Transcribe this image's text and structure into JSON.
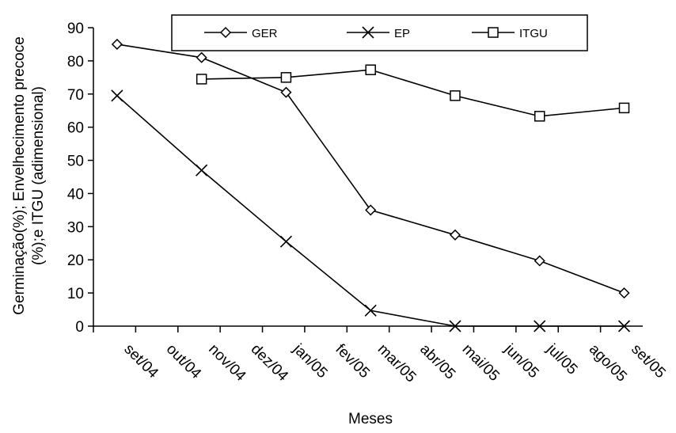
{
  "chart_data": {
    "type": "line",
    "title": "",
    "xlabel": "Meses",
    "ylabel_lines": [
      "Germinação(%); Envelhecimento precoce",
      "(%);e ITGU (adimensional)"
    ],
    "categories": [
      "set/04",
      "out/04",
      "nov/04",
      "dez/04",
      "jan/05",
      "fev/05",
      "mar/05",
      "abr/05",
      "mai/05",
      "jun/05",
      "jul/05",
      "ago/05",
      "set/05"
    ],
    "ylim": [
      0,
      90
    ],
    "yticks": [
      0,
      10,
      20,
      30,
      40,
      50,
      60,
      70,
      80,
      90
    ],
    "grid": false,
    "legend_position": "top",
    "series": [
      {
        "name": "GER",
        "marker": "diamond",
        "x": [
          0.28,
          1.28,
          2.28,
          3.28,
          4.28,
          5.28,
          6.28
        ],
        "values": [
          85,
          81,
          70.5,
          35,
          27.5,
          19.7,
          10
        ]
      },
      {
        "name": "EP",
        "marker": "x",
        "x": [
          0.28,
          1.28,
          2.28,
          3.28,
          4.28,
          5.28,
          6.28
        ],
        "values": [
          69.5,
          47,
          25.5,
          4.7,
          0,
          0,
          0
        ]
      },
      {
        "name": "ITGU",
        "marker": "square",
        "x": [
          1.28,
          2.28,
          3.28,
          4.28,
          5.28,
          6.28
        ],
        "values": [
          74.5,
          75,
          77.3,
          69.5,
          63.3,
          65.8
        ]
      }
    ]
  }
}
